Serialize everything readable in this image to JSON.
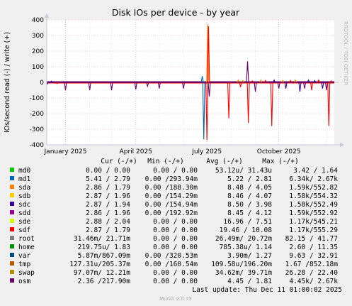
{
  "chart_data": {
    "type": "line",
    "title": "Disk IOs per device - by year",
    "ylabel": "IOs/second read (-) / write (+)",
    "side_label": "RRDTOOL / TOBI OETIKER",
    "ylim": [
      -400,
      400
    ],
    "y_ticks": [
      400,
      300,
      200,
      100,
      0,
      -100,
      -200,
      -300,
      -400
    ],
    "y_tick_labels": [
      "400",
      "300",
      "200",
      "100",
      "0",
      "-100",
      "-200",
      "-300",
      "-400"
    ],
    "x_range": [
      "2024-12-08",
      "2025-12-11"
    ],
    "x_ticks": [
      {
        "date": "2025-01-01",
        "label": "January 2025"
      },
      {
        "date": "2025-04-01",
        "label": "April 2025"
      },
      {
        "date": "2025-07-01",
        "label": "July 2025"
      },
      {
        "date": "2025-10-01",
        "label": "October 2025"
      }
    ],
    "grid": true,
    "legend_header": [
      "Cur (-/+)",
      "Min (-/+)",
      "Avg (-/+)",
      "Max (-/+)"
    ],
    "series": [
      {
        "name": "md0",
        "color": "#00cc00",
        "cur": "0.00 /  0.00",
        "min": "0.00 /  0.00",
        "avg": "53.12u/ 31.43u",
        "max": "3.42 /  1.64"
      },
      {
        "name": "md1",
        "color": "#0066b3",
        "cur": "5.41 /  2.79",
        "min": "0.00 /293.94m",
        "avg": "5.22 /  2.81",
        "max": "6.34k/  2.67k"
      },
      {
        "name": "sda",
        "color": "#ff8000",
        "cur": "2.86 /  1.79",
        "min": "0.00 /188.30m",
        "avg": "8.48 /  4.05",
        "max": "1.59k/552.82"
      },
      {
        "name": "sdb",
        "color": "#ffcc00",
        "cur": "2.87 /  1.96",
        "min": "0.00 /154.29m",
        "avg": "8.46 /  4.07",
        "max": "1.58k/554.32"
      },
      {
        "name": "sdc",
        "color": "#330099",
        "cur": "2.87 /  1.94",
        "min": "0.00 /154.94m",
        "avg": "8.50 /  3.98",
        "max": "1.58k/552.49"
      },
      {
        "name": "sdd",
        "color": "#990099",
        "cur": "2.86 /  1.96",
        "min": "0.00 /192.92m",
        "avg": "8.45 /  4.12",
        "max": "1.59k/552.92"
      },
      {
        "name": "sde",
        "color": "#ccff00",
        "cur": "2.88 /  2.04",
        "min": "0.00 /  0.00",
        "avg": "16.96 /  7.51",
        "max": "1.17k/545.21"
      },
      {
        "name": "sdf",
        "color": "#ff0000",
        "cur": "2.87 /  1.79",
        "min": "0.00 /  0.00",
        "avg": "19.46 / 10.08",
        "max": "1.17k/555.29"
      },
      {
        "name": "root",
        "color": "#808080",
        "cur": "31.46m/ 21.71m",
        "min": "0.00 /  0.00",
        "avg": "26.49m/ 20.72m",
        "max": "82.15 / 41.77"
      },
      {
        "name": "home",
        "color": "#008f00",
        "cur": "219.75u/  1.83",
        "min": "0.00 /  0.00",
        "avg": "785.38u/  1.14",
        "max": "2.60 / 11.35"
      },
      {
        "name": "var",
        "color": "#00487d",
        "cur": "5.87m/867.09m",
        "min": "0.00 /320.53m",
        "avg": "3.90m/  1.27",
        "max": "9.63 / 32.91"
      },
      {
        "name": "tmp",
        "color": "#b35a00",
        "cur": "127.31u/205.37m",
        "min": "0.00 /160.54m",
        "avg": "109.58u/196.20m",
        "max": "1.67 /852.18m"
      },
      {
        "name": "swap",
        "color": "#b38f00",
        "cur": "97.07m/ 12.21m",
        "min": "0.00 /  0.00",
        "avg": "34.62m/ 39.71m",
        "max": "26.28 / 22.40"
      },
      {
        "name": "osm",
        "color": "#6b006b",
        "cur": "2.36 /217.90m",
        "min": "0.00 /  0.00",
        "avg": "4.45 /  1.81",
        "max": "4.45k/  2.67k"
      }
    ],
    "spikes": [
      {
        "date": "2024-12-09",
        "series": "sdc",
        "value": -10
      },
      {
        "date": "2024-12-14",
        "series": "sdc",
        "value": 8
      },
      {
        "date": "2024-12-21",
        "series": "sdf",
        "value": -8
      },
      {
        "date": "2025-01-01",
        "series": "osm",
        "value": -50
      },
      {
        "date": "2025-01-04",
        "series": "sdc",
        "value": 5
      },
      {
        "date": "2025-02-01",
        "series": "osm",
        "value": -50
      },
      {
        "date": "2025-03-01",
        "series": "osm",
        "value": -50
      },
      {
        "date": "2025-04-01",
        "series": "osm",
        "value": -45
      },
      {
        "date": "2025-04-16",
        "series": "osm",
        "value": -25
      },
      {
        "date": "2025-05-01",
        "series": "osm",
        "value": -40
      },
      {
        "date": "2025-06-01",
        "series": "osm",
        "value": -40
      },
      {
        "date": "2025-06-25",
        "series": "md1",
        "value": 40
      },
      {
        "date": "2025-06-27",
        "series": "md1",
        "value": -365
      },
      {
        "date": "2025-07-01",
        "series": "sdf",
        "value": -370
      },
      {
        "date": "2025-07-02",
        "series": "sda",
        "value": 370
      },
      {
        "date": "2025-07-03",
        "series": "sdf",
        "value": 360
      },
      {
        "date": "2025-07-04",
        "series": "osm",
        "value": -90
      },
      {
        "date": "2025-07-29",
        "series": "sdf",
        "value": -230
      },
      {
        "date": "2025-08-10",
        "series": "sda",
        "value": 15
      },
      {
        "date": "2025-08-13",
        "series": "sdf",
        "value": -30
      },
      {
        "date": "2025-08-16",
        "series": "sda",
        "value": 12
      },
      {
        "date": "2025-08-22",
        "series": "osm",
        "value": 135
      },
      {
        "date": "2025-08-23",
        "series": "sdf",
        "value": -260
      },
      {
        "date": "2025-08-28",
        "series": "sdf",
        "value": 10
      },
      {
        "date": "2025-09-01",
        "series": "osm",
        "value": -60
      },
      {
        "date": "2025-09-08",
        "series": "sda",
        "value": 15
      },
      {
        "date": "2025-09-14",
        "series": "sdf",
        "value": 12
      },
      {
        "date": "2025-09-22",
        "series": "sdf",
        "value": -280
      },
      {
        "date": "2025-09-25",
        "series": "sdc",
        "value": 15
      },
      {
        "date": "2025-10-01",
        "series": "osm",
        "value": -40
      },
      {
        "date": "2025-10-06",
        "series": "sda",
        "value": 12
      },
      {
        "date": "2025-10-10",
        "series": "sdc",
        "value": -40
      },
      {
        "date": "2025-10-16",
        "series": "sdf",
        "value": 12
      },
      {
        "date": "2025-10-22",
        "series": "sda",
        "value": 15
      },
      {
        "date": "2025-10-28",
        "series": "sdc",
        "value": -60
      },
      {
        "date": "2025-11-03",
        "series": "osm",
        "value": -40
      },
      {
        "date": "2025-11-08",
        "series": "sdc",
        "value": 15
      },
      {
        "date": "2025-11-12",
        "series": "sdf",
        "value": -50
      },
      {
        "date": "2025-11-16",
        "series": "sdc",
        "value": 12
      },
      {
        "date": "2025-11-21",
        "series": "sdf",
        "value": 15
      },
      {
        "date": "2025-11-26",
        "series": "sdc",
        "value": -40
      },
      {
        "date": "2025-12-01",
        "series": "osm",
        "value": -50
      },
      {
        "date": "2025-12-04",
        "series": "sdf",
        "value": -280
      },
      {
        "date": "2025-12-07",
        "series": "sdf",
        "value": 10
      }
    ]
  },
  "footer": {
    "last_update": "Last update: Thu Dec 11 01:00:02 2025",
    "generator": "Munin 2.0.73"
  }
}
